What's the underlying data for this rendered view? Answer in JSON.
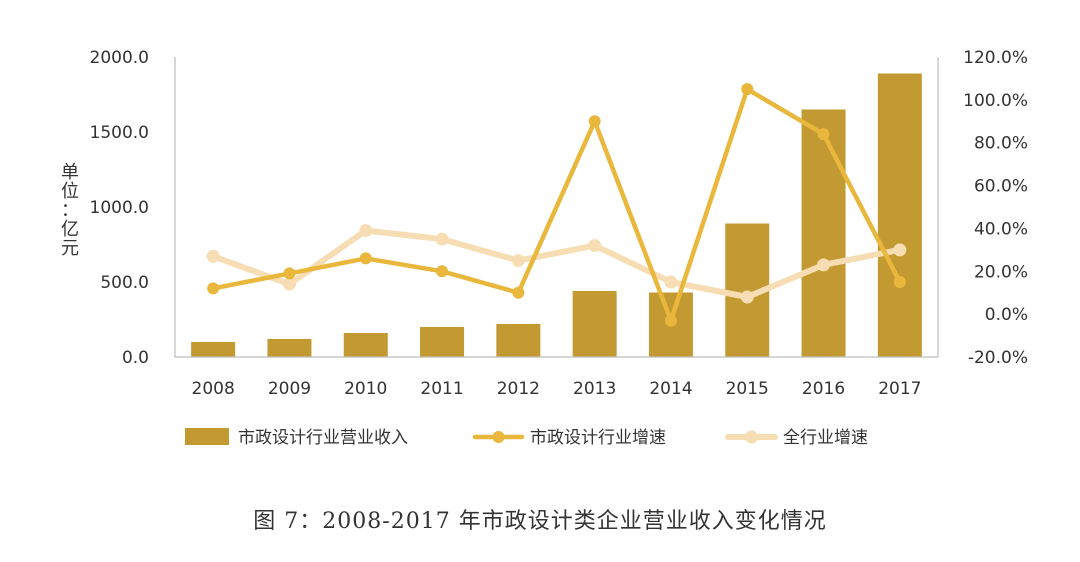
{
  "chart_data": {
    "type": "bar",
    "unit_label": "单位：亿元",
    "categories": [
      "2008",
      "2009",
      "2010",
      "2011",
      "2012",
      "2013",
      "2014",
      "2015",
      "2016",
      "2017"
    ],
    "series": [
      {
        "name": "市政设计行业营业收入",
        "type": "bar",
        "axis": "left",
        "color": "#C39A32",
        "values": [
          100,
          120,
          160,
          200,
          220,
          440,
          430,
          890,
          1650,
          1890
        ]
      },
      {
        "name": "市政设计行业增速",
        "type": "line",
        "axis": "right",
        "color": "#E9B73B",
        "values": [
          0.12,
          0.19,
          0.26,
          0.2,
          0.1,
          0.9,
          -0.03,
          1.05,
          0.84,
          0.15
        ]
      },
      {
        "name": "全行业增速",
        "type": "line",
        "axis": "right",
        "color": "#F7DDB3",
        "values": [
          0.27,
          0.14,
          0.39,
          0.35,
          0.25,
          0.32,
          0.15,
          0.08,
          0.23,
          0.3
        ]
      }
    ],
    "y_left": {
      "min": 0,
      "max": 2000,
      "ticks": [
        0,
        500,
        1000,
        1500,
        2000
      ],
      "tick_labels": [
        "0.0",
        "500.0",
        "1000.0",
        "1500.0",
        "2000.0"
      ]
    },
    "y_right": {
      "min": -0.2,
      "max": 1.2,
      "ticks": [
        -0.2,
        0,
        0.2,
        0.4,
        0.6,
        0.8,
        1.0,
        1.2
      ],
      "tick_labels": [
        "-20.0%",
        "0.0%",
        "20.0%",
        "40.0%",
        "60.0%",
        "80.0%",
        "100.0%",
        "120.0%"
      ]
    },
    "legend_position": "bottom",
    "grid": false
  },
  "caption": "图 7：2008-2017 年市政设计类企业营业收入变化情况"
}
